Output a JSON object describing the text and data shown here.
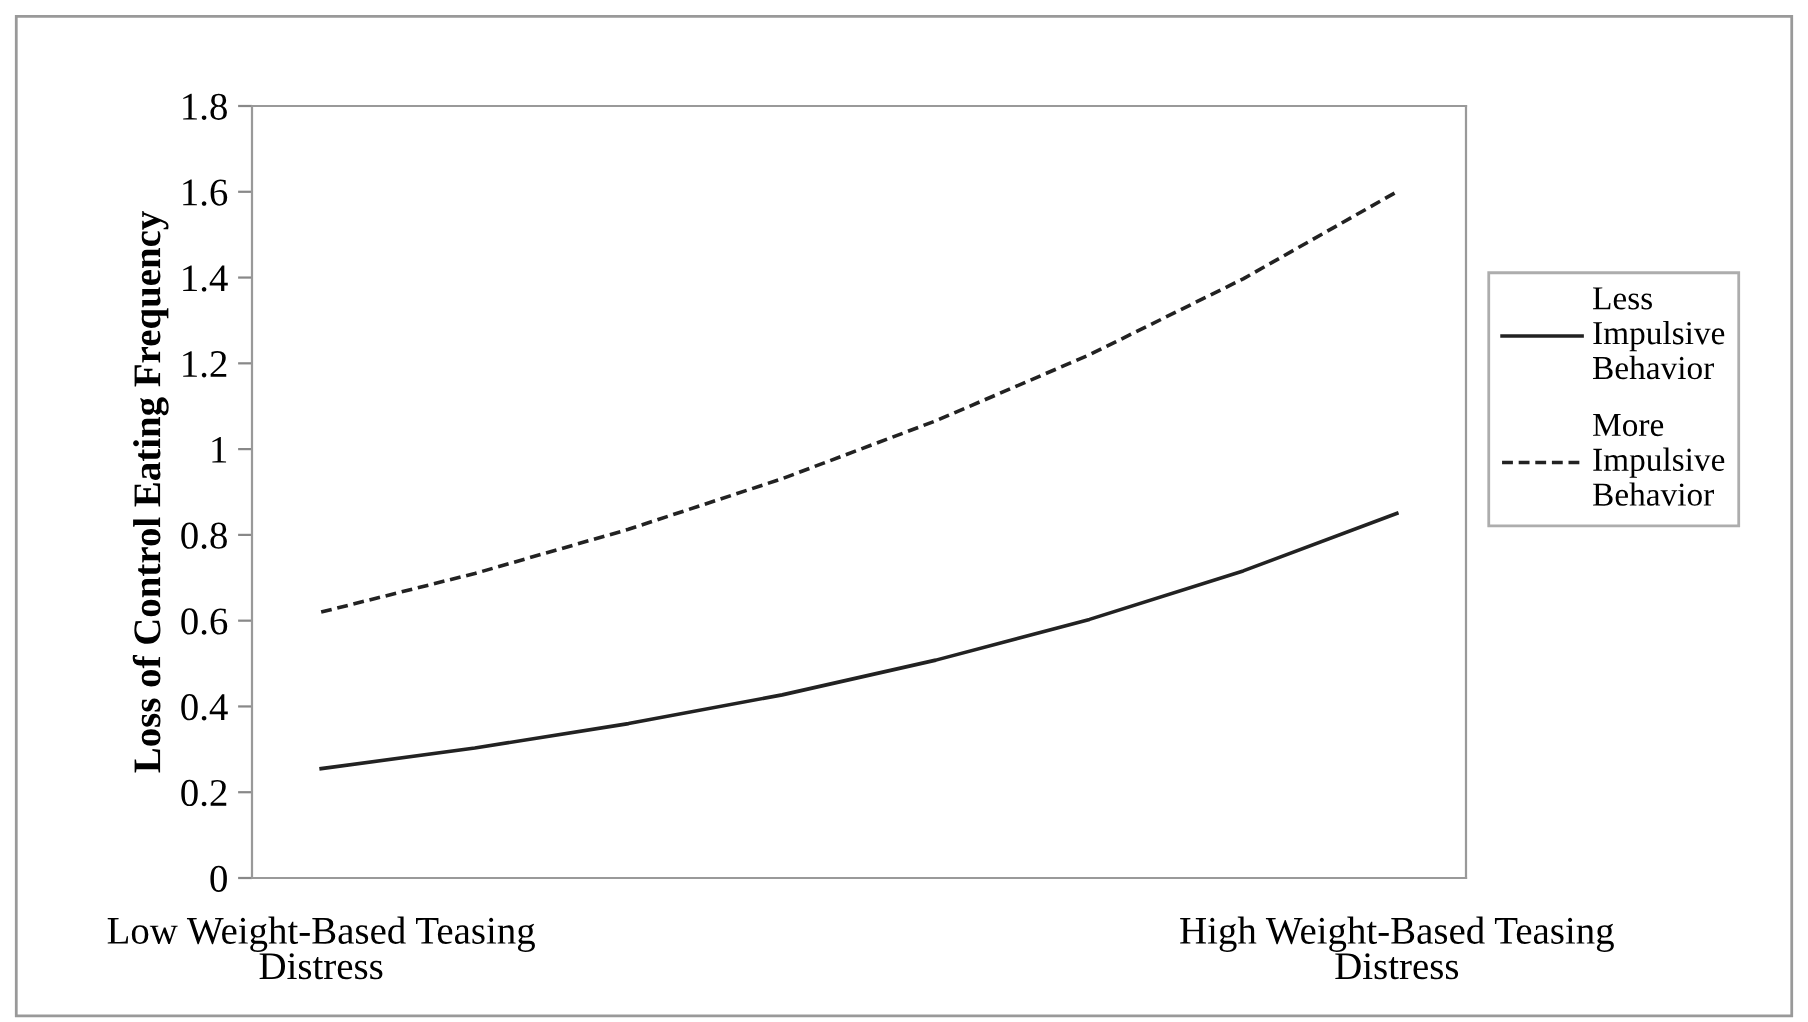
{
  "chart_data": {
    "type": "line",
    "ylabel": "Loss of Control Eating Frequency",
    "categories": [
      "Low Weight-Based Teasing Distress",
      null,
      null,
      null,
      null,
      null,
      null,
      "High Weight-Based Teasing Distress"
    ],
    "series": [
      {
        "name": "Less Impulsive Behavior",
        "color": "#222222",
        "line_style": "solid",
        "values": [
          0.255,
          0.303,
          0.36,
          0.427,
          0.508,
          0.603,
          0.716,
          0.85
        ]
      },
      {
        "name": "More Impulsive Behavior",
        "color": "#222222",
        "line_style": "dashed",
        "values": [
          0.62,
          0.71,
          0.813,
          0.931,
          1.066,
          1.22,
          1.397,
          1.6
        ]
      }
    ],
    "ylim": [
      0,
      1.8
    ],
    "yticks": [
      0,
      0.2,
      0.4,
      0.6,
      0.8,
      1,
      1.2,
      1.4,
      1.6,
      1.8
    ],
    "grid": false,
    "legend": "right",
    "marker": "none"
  }
}
